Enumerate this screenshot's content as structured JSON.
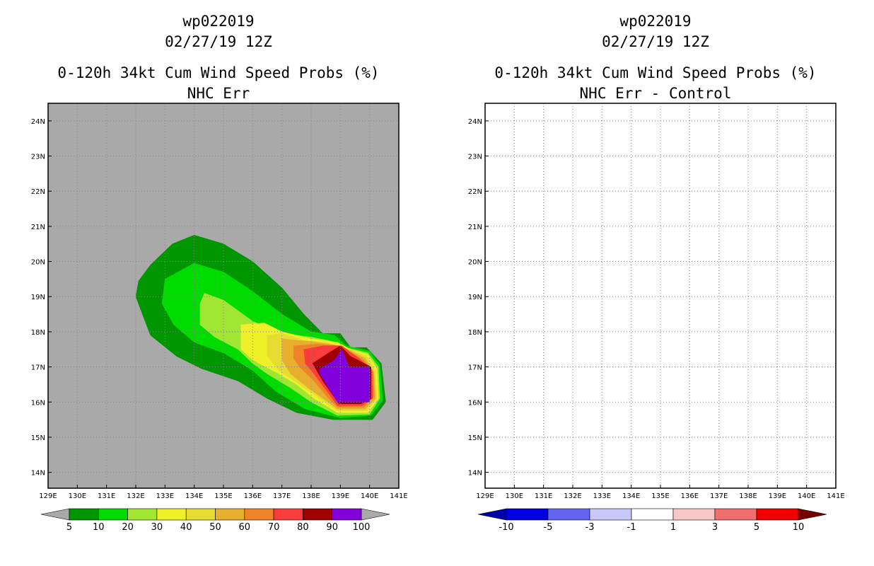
{
  "figure": {
    "storm_id": "wp022019",
    "datetime": "02/27/19 12Z",
    "product": "0-120h 34kt Cum Wind Speed Probs (%)"
  },
  "axes": {
    "lon_range": [
      129,
      141
    ],
    "lat_range": [
      13.55,
      24.5
    ],
    "lon_ticks": [
      "129E",
      "130E",
      "131E",
      "132E",
      "133E",
      "134E",
      "135E",
      "136E",
      "137E",
      "138E",
      "139E",
      "140E",
      "141E"
    ],
    "lat_ticks": [
      "14N",
      "15N",
      "16N",
      "17N",
      "18N",
      "19N",
      "20N",
      "21N",
      "22N",
      "23N",
      "24N"
    ]
  },
  "chart_data": [
    {
      "type": "heatmap",
      "title": "NHC Err",
      "xlabel": "",
      "ylabel": "",
      "xlim": [
        129,
        141
      ],
      "ylim": [
        13.55,
        24.5
      ],
      "grid": true,
      "background_color": "#a9a9a9",
      "colorbar": {
        "levels": [
          5,
          10,
          20,
          30,
          40,
          50,
          60,
          70,
          80,
          90,
          100
        ],
        "tick_labels": [
          "5",
          "10",
          "20",
          "30",
          "40",
          "50",
          "60",
          "70",
          "80",
          "90",
          "100"
        ],
        "colors": [
          "#009600",
          "#00dc00",
          "#a0e632",
          "#f0f028",
          "#e6dc32",
          "#e6af2d",
          "#f08228",
          "#fa3c3c",
          "#a00000",
          "#8200dc"
        ],
        "under_color": "#a9a9a9",
        "over_color": "#a9a9a9"
      },
      "contours": [
        {
          "level": 5,
          "color": "#009600",
          "polygon": [
            [
              133.25,
              20.5
            ],
            [
              134.0,
              20.75
            ],
            [
              135.0,
              20.5
            ],
            [
              136.0,
              20.0
            ],
            [
              137.0,
              19.25
            ],
            [
              137.75,
              18.5
            ],
            [
              138.4,
              17.95
            ],
            [
              139.0,
              17.95
            ],
            [
              139.35,
              17.55
            ],
            [
              139.9,
              17.55
            ],
            [
              140.4,
              17.1
            ],
            [
              140.55,
              16.0
            ],
            [
              140.1,
              15.5
            ],
            [
              138.75,
              15.5
            ],
            [
              137.5,
              15.7
            ],
            [
              136.5,
              16.1
            ],
            [
              135.5,
              16.6
            ],
            [
              134.25,
              16.95
            ],
            [
              133.4,
              17.3
            ],
            [
              132.5,
              17.9
            ],
            [
              132.0,
              19.0
            ],
            [
              132.1,
              19.45
            ],
            [
              132.5,
              19.9
            ]
          ]
        },
        {
          "level": 10,
          "color": "#00dc00",
          "polygon": [
            [
              133.0,
              19.5
            ],
            [
              134.0,
              19.95
            ],
            [
              135.0,
              19.7
            ],
            [
              136.0,
              19.15
            ],
            [
              137.0,
              18.5
            ],
            [
              138.0,
              18.0
            ],
            [
              138.8,
              17.9
            ],
            [
              139.2,
              17.6
            ],
            [
              140.0,
              17.45
            ],
            [
              140.35,
              17.05
            ],
            [
              140.45,
              16.05
            ],
            [
              140.05,
              15.62
            ],
            [
              139.0,
              15.55
            ],
            [
              137.8,
              15.8
            ],
            [
              136.8,
              16.3
            ],
            [
              136.0,
              16.9
            ],
            [
              135.0,
              17.4
            ],
            [
              134.0,
              17.7
            ],
            [
              133.3,
              18.2
            ],
            [
              132.9,
              18.8
            ]
          ]
        },
        {
          "level": 20,
          "color": "#a0e632",
          "polygon": [
            [
              134.35,
              19.1
            ],
            [
              135.0,
              18.9
            ],
            [
              136.0,
              18.3
            ],
            [
              137.0,
              17.95
            ],
            [
              138.0,
              17.85
            ],
            [
              138.6,
              17.75
            ],
            [
              139.2,
              17.55
            ],
            [
              139.95,
              17.4
            ],
            [
              140.3,
              17.0
            ],
            [
              140.35,
              16.1
            ],
            [
              140.0,
              15.65
            ],
            [
              138.9,
              15.62
            ],
            [
              138.0,
              16.0
            ],
            [
              137.3,
              16.4
            ],
            [
              136.5,
              16.8
            ],
            [
              136.0,
              17.1
            ],
            [
              135.5,
              17.5
            ],
            [
              134.7,
              17.85
            ],
            [
              134.2,
              18.2
            ],
            [
              134.2,
              18.8
            ]
          ]
        },
        {
          "level": 30,
          "color": "#f0f028",
          "polygon": [
            [
              135.6,
              18.2
            ],
            [
              136.4,
              18.25
            ],
            [
              137.0,
              18.0
            ],
            [
              138.0,
              17.8
            ],
            [
              138.9,
              17.7
            ],
            [
              139.35,
              17.5
            ],
            [
              139.95,
              17.35
            ],
            [
              140.25,
              16.95
            ],
            [
              140.3,
              16.1
            ],
            [
              139.95,
              15.7
            ],
            [
              138.9,
              15.7
            ],
            [
              138.1,
              16.1
            ],
            [
              137.5,
              16.5
            ],
            [
              136.8,
              16.85
            ],
            [
              136.0,
              17.2
            ],
            [
              135.6,
              17.5
            ],
            [
              135.6,
              18.0
            ]
          ]
        },
        {
          "level": 40,
          "color": "#e6dc32",
          "polygon": [
            [
              136.5,
              17.9
            ],
            [
              137.0,
              17.95
            ],
            [
              137.8,
              17.75
            ],
            [
              138.5,
              17.7
            ],
            [
              139.35,
              17.5
            ],
            [
              139.9,
              17.3
            ],
            [
              140.2,
              16.9
            ],
            [
              140.25,
              16.1
            ],
            [
              139.9,
              15.75
            ],
            [
              138.9,
              15.75
            ],
            [
              138.3,
              16.1
            ],
            [
              137.6,
              16.5
            ],
            [
              136.9,
              16.9
            ],
            [
              136.5,
              17.3
            ]
          ]
        },
        {
          "level": 50,
          "color": "#e6af2d",
          "polygon": [
            [
              137.0,
              17.8
            ],
            [
              137.6,
              17.75
            ],
            [
              138.2,
              17.7
            ],
            [
              139.0,
              17.6
            ],
            [
              139.85,
              17.25
            ],
            [
              140.15,
              16.85
            ],
            [
              140.2,
              16.1
            ],
            [
              139.85,
              15.8
            ],
            [
              138.9,
              15.8
            ],
            [
              138.5,
              16.05
            ],
            [
              137.9,
              16.4
            ],
            [
              137.3,
              16.8
            ],
            [
              137.0,
              17.2
            ]
          ]
        },
        {
          "level": 60,
          "color": "#f08228",
          "polygon": [
            [
              137.4,
              17.6
            ],
            [
              138.2,
              17.65
            ],
            [
              139.0,
              17.6
            ],
            [
              139.8,
              17.2
            ],
            [
              140.12,
              16.85
            ],
            [
              140.15,
              16.15
            ],
            [
              139.8,
              15.85
            ],
            [
              138.9,
              15.85
            ],
            [
              138.6,
              16.1
            ],
            [
              138.1,
              16.6
            ],
            [
              137.6,
              17.0
            ],
            [
              137.4,
              17.25
            ]
          ]
        },
        {
          "level": 70,
          "color": "#fa3c3c",
          "polygon": [
            [
              137.75,
              17.5
            ],
            [
              138.4,
              17.6
            ],
            [
              139.05,
              17.6
            ],
            [
              139.7,
              17.2
            ],
            [
              140.08,
              16.9
            ],
            [
              140.1,
              16.1
            ],
            [
              139.75,
              15.9
            ],
            [
              138.9,
              15.9
            ],
            [
              138.55,
              16.3
            ],
            [
              138.1,
              16.8
            ],
            [
              137.8,
              17.1
            ]
          ]
        },
        {
          "level": 80,
          "color": "#a00000",
          "polygon": [
            [
              138.05,
              17.1
            ],
            [
              138.6,
              17.4
            ],
            [
              139.0,
              17.6
            ],
            [
              139.35,
              17.3
            ],
            [
              140.05,
              17.0
            ],
            [
              140.05,
              16.1
            ],
            [
              139.7,
              15.95
            ],
            [
              138.95,
              15.95
            ],
            [
              138.4,
              16.6
            ]
          ]
        },
        {
          "level": 90,
          "color": "#8200dc",
          "polygon": [
            [
              138.3,
              16.95
            ],
            [
              138.8,
              17.2
            ],
            [
              139.05,
              17.5
            ],
            [
              139.3,
              17.0
            ],
            [
              140.0,
              17.0
            ],
            [
              140.0,
              16.0
            ],
            [
              138.9,
              16.0
            ],
            [
              138.3,
              16.8
            ]
          ]
        }
      ]
    },
    {
      "type": "heatmap",
      "title": "NHC Err - Control",
      "xlabel": "",
      "ylabel": "",
      "xlim": [
        129,
        141
      ],
      "ylim": [
        13.55,
        24.5
      ],
      "grid": true,
      "background_color": "#ffffff",
      "colorbar": {
        "levels": [
          -10,
          -5,
          -3,
          -1,
          1,
          3,
          5,
          10
        ],
        "tick_labels": [
          "-10",
          "-5",
          "-3",
          "-1",
          "1",
          "3",
          "5",
          "10"
        ],
        "colors": [
          "#0000e6",
          "#6464f0",
          "#c8c8f8",
          "#ffffff",
          "#f8c8c8",
          "#f06e6e",
          "#f00000"
        ],
        "under_color": "#0000aa",
        "over_color": "#780000"
      },
      "contours": []
    }
  ]
}
